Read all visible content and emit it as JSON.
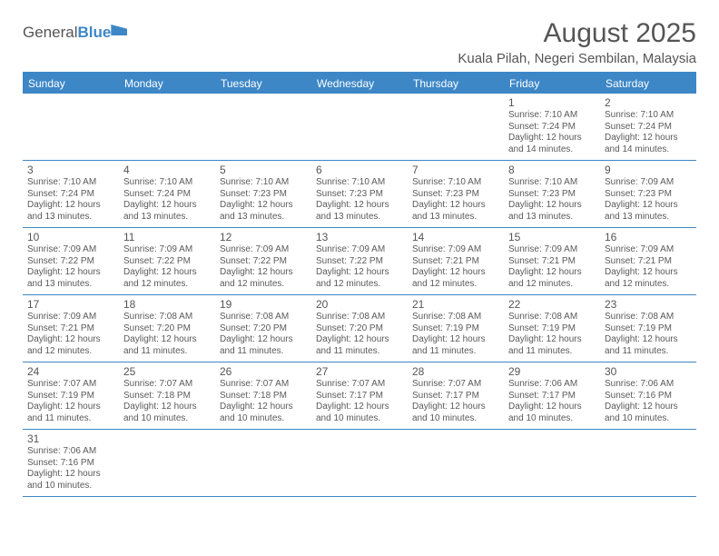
{
  "logo": {
    "text1": "General",
    "text2": "Blue"
  },
  "title": "August 2025",
  "location": "Kuala Pilah, Negeri Sembilan, Malaysia",
  "dayNames": [
    "Sunday",
    "Monday",
    "Tuesday",
    "Wednesday",
    "Thursday",
    "Friday",
    "Saturday"
  ],
  "colors": {
    "accent": "#3d87c7",
    "text": "#5a5a5a",
    "background": "#ffffff",
    "header_text": "#ffffff"
  },
  "layout": {
    "columns": 7,
    "rows": 6,
    "font_family": "Arial",
    "daynum_fontsize": 12,
    "info_fontsize": 10,
    "header_fontsize": 12,
    "title_fontsize": 30,
    "location_fontsize": 15
  },
  "weeks": [
    [
      null,
      null,
      null,
      null,
      null,
      {
        "d": "1",
        "sr": "7:10 AM",
        "ss": "7:24 PM",
        "dl": "12 hours and 14 minutes."
      },
      {
        "d": "2",
        "sr": "7:10 AM",
        "ss": "7:24 PM",
        "dl": "12 hours and 14 minutes."
      }
    ],
    [
      {
        "d": "3",
        "sr": "7:10 AM",
        "ss": "7:24 PM",
        "dl": "12 hours and 13 minutes."
      },
      {
        "d": "4",
        "sr": "7:10 AM",
        "ss": "7:24 PM",
        "dl": "12 hours and 13 minutes."
      },
      {
        "d": "5",
        "sr": "7:10 AM",
        "ss": "7:23 PM",
        "dl": "12 hours and 13 minutes."
      },
      {
        "d": "6",
        "sr": "7:10 AM",
        "ss": "7:23 PM",
        "dl": "12 hours and 13 minutes."
      },
      {
        "d": "7",
        "sr": "7:10 AM",
        "ss": "7:23 PM",
        "dl": "12 hours and 13 minutes."
      },
      {
        "d": "8",
        "sr": "7:10 AM",
        "ss": "7:23 PM",
        "dl": "12 hours and 13 minutes."
      },
      {
        "d": "9",
        "sr": "7:09 AM",
        "ss": "7:23 PM",
        "dl": "12 hours and 13 minutes."
      }
    ],
    [
      {
        "d": "10",
        "sr": "7:09 AM",
        "ss": "7:22 PM",
        "dl": "12 hours and 13 minutes."
      },
      {
        "d": "11",
        "sr": "7:09 AM",
        "ss": "7:22 PM",
        "dl": "12 hours and 12 minutes."
      },
      {
        "d": "12",
        "sr": "7:09 AM",
        "ss": "7:22 PM",
        "dl": "12 hours and 12 minutes."
      },
      {
        "d": "13",
        "sr": "7:09 AM",
        "ss": "7:22 PM",
        "dl": "12 hours and 12 minutes."
      },
      {
        "d": "14",
        "sr": "7:09 AM",
        "ss": "7:21 PM",
        "dl": "12 hours and 12 minutes."
      },
      {
        "d": "15",
        "sr": "7:09 AM",
        "ss": "7:21 PM",
        "dl": "12 hours and 12 minutes."
      },
      {
        "d": "16",
        "sr": "7:09 AM",
        "ss": "7:21 PM",
        "dl": "12 hours and 12 minutes."
      }
    ],
    [
      {
        "d": "17",
        "sr": "7:09 AM",
        "ss": "7:21 PM",
        "dl": "12 hours and 12 minutes."
      },
      {
        "d": "18",
        "sr": "7:08 AM",
        "ss": "7:20 PM",
        "dl": "12 hours and 11 minutes."
      },
      {
        "d": "19",
        "sr": "7:08 AM",
        "ss": "7:20 PM",
        "dl": "12 hours and 11 minutes."
      },
      {
        "d": "20",
        "sr": "7:08 AM",
        "ss": "7:20 PM",
        "dl": "12 hours and 11 minutes."
      },
      {
        "d": "21",
        "sr": "7:08 AM",
        "ss": "7:19 PM",
        "dl": "12 hours and 11 minutes."
      },
      {
        "d": "22",
        "sr": "7:08 AM",
        "ss": "7:19 PM",
        "dl": "12 hours and 11 minutes."
      },
      {
        "d": "23",
        "sr": "7:08 AM",
        "ss": "7:19 PM",
        "dl": "12 hours and 11 minutes."
      }
    ],
    [
      {
        "d": "24",
        "sr": "7:07 AM",
        "ss": "7:19 PM",
        "dl": "12 hours and 11 minutes."
      },
      {
        "d": "25",
        "sr": "7:07 AM",
        "ss": "7:18 PM",
        "dl": "12 hours and 10 minutes."
      },
      {
        "d": "26",
        "sr": "7:07 AM",
        "ss": "7:18 PM",
        "dl": "12 hours and 10 minutes."
      },
      {
        "d": "27",
        "sr": "7:07 AM",
        "ss": "7:17 PM",
        "dl": "12 hours and 10 minutes."
      },
      {
        "d": "28",
        "sr": "7:07 AM",
        "ss": "7:17 PM",
        "dl": "12 hours and 10 minutes."
      },
      {
        "d": "29",
        "sr": "7:06 AM",
        "ss": "7:17 PM",
        "dl": "12 hours and 10 minutes."
      },
      {
        "d": "30",
        "sr": "7:06 AM",
        "ss": "7:16 PM",
        "dl": "12 hours and 10 minutes."
      }
    ],
    [
      {
        "d": "31",
        "sr": "7:06 AM",
        "ss": "7:16 PM",
        "dl": "12 hours and 10 minutes."
      },
      null,
      null,
      null,
      null,
      null,
      null
    ]
  ],
  "labels": {
    "sunrise": "Sunrise: ",
    "sunset": "Sunset: ",
    "daylight": "Daylight: "
  }
}
